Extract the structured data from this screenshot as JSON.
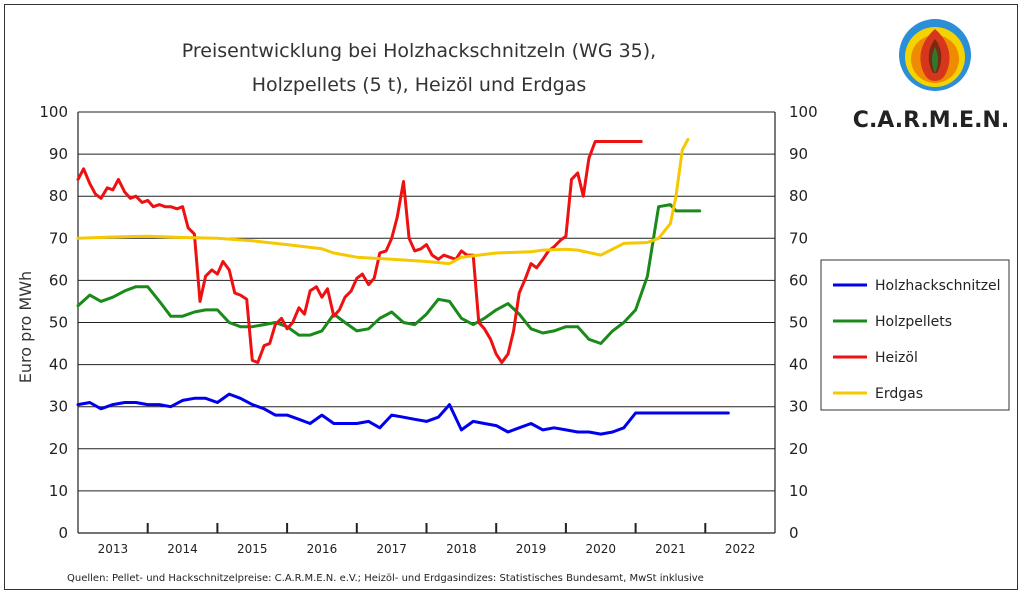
{
  "title_line1": "Preisentwicklung bei Holzhackschnitzeln (WG 35),",
  "title_line2": "Holzpellets (5 t), Heizöl und Erdgas",
  "logo": {
    "text": "C.A.R.M.E.N.",
    "icon": "carmen-flame-logo-icon"
  },
  "source_note": "Quellen: Pellet- und Hackschnitzelpreise: C.A.R.M.E.N. e.V.; Heizöl- und Erdgasindizes: Statistisches Bundesamt, MwSt inklusive",
  "chart_data": {
    "type": "line",
    "title": "Preisentwicklung bei Holzhackschnitzeln (WG 35), Holzpellets (5 t), Heizöl und Erdgas",
    "ylabel": "Euro pro MWh",
    "xlabel": "",
    "ylim": [
      0,
      100
    ],
    "yticks": [
      0,
      10,
      20,
      30,
      40,
      50,
      60,
      70,
      80,
      90,
      100
    ],
    "xlim": [
      2012.5,
      2022.5
    ],
    "xtick_labels": [
      "2013",
      "2014",
      "2015",
      "2016",
      "2017",
      "2018",
      "2019",
      "2020",
      "2021",
      "2022"
    ],
    "grid": true,
    "legend_position": "right",
    "series": [
      {
        "name": "Holzhackschnitzel",
        "color": "#0000ee",
        "x": [
          2012.5,
          2012.67,
          2012.83,
          2013.0,
          2013.17,
          2013.33,
          2013.5,
          2013.67,
          2013.83,
          2014.0,
          2014.17,
          2014.33,
          2014.5,
          2014.67,
          2014.83,
          2015.0,
          2015.17,
          2015.33,
          2015.5,
          2015.67,
          2015.83,
          2016.0,
          2016.17,
          2016.33,
          2016.5,
          2016.67,
          2016.83,
          2017.0,
          2017.17,
          2017.33,
          2017.5,
          2017.67,
          2017.83,
          2018.0,
          2018.17,
          2018.33,
          2018.5,
          2018.67,
          2018.83,
          2019.0,
          2019.17,
          2019.33,
          2019.5,
          2019.67,
          2019.83,
          2020.0,
          2020.17,
          2020.33,
          2020.5,
          2020.67,
          2020.83,
          2021.0,
          2021.17,
          2021.33,
          2021.5,
          2021.67,
          2021.83
        ],
        "values": [
          30.5,
          31.0,
          29.5,
          30.5,
          31.0,
          31.0,
          30.5,
          30.5,
          30.0,
          31.5,
          32.0,
          32.0,
          31.0,
          33.0,
          32.0,
          30.5,
          29.5,
          28.0,
          28.0,
          27.0,
          26.0,
          28.0,
          26.0,
          26.0,
          26.0,
          26.5,
          25.0,
          28.0,
          27.5,
          27.0,
          26.5,
          27.5,
          30.5,
          24.5,
          26.5,
          26.0,
          25.5,
          24.0,
          25.0,
          26.0,
          24.5,
          25.0,
          24.5,
          24.0,
          24.0,
          23.5,
          24.0,
          25.0,
          28.5,
          28.5,
          28.5,
          28.5,
          28.5,
          28.5,
          28.5,
          28.5,
          28.5
        ]
      },
      {
        "name": "Holzpellets",
        "color": "#1a8a1a",
        "x": [
          2012.5,
          2012.67,
          2012.83,
          2013.0,
          2013.17,
          2013.33,
          2013.5,
          2013.67,
          2013.83,
          2014.0,
          2014.17,
          2014.33,
          2014.5,
          2014.67,
          2014.83,
          2015.0,
          2015.17,
          2015.33,
          2015.5,
          2015.67,
          2015.83,
          2016.0,
          2016.17,
          2016.33,
          2016.5,
          2016.67,
          2016.83,
          2017.0,
          2017.17,
          2017.33,
          2017.5,
          2017.67,
          2017.83,
          2018.0,
          2018.17,
          2018.33,
          2018.5,
          2018.67,
          2018.83,
          2019.0,
          2019.17,
          2019.33,
          2019.5,
          2019.67,
          2019.83,
          2020.0,
          2020.17,
          2020.33,
          2020.5,
          2020.67,
          2020.83,
          2021.0,
          2021.08,
          2021.17,
          2021.25,
          2021.33,
          2021.42
        ],
        "values": [
          54.0,
          56.5,
          55.0,
          56.0,
          57.5,
          58.5,
          58.5,
          55.0,
          51.5,
          51.5,
          52.5,
          53.0,
          53.0,
          50.0,
          49.0,
          49.0,
          49.5,
          50.0,
          49.0,
          47.0,
          47.0,
          48.0,
          52.0,
          50.0,
          48.0,
          48.5,
          51.0,
          52.5,
          50.0,
          49.5,
          52.0,
          55.5,
          55.0,
          51.0,
          49.5,
          51.0,
          53.0,
          54.5,
          52.0,
          48.5,
          47.5,
          48.0,
          49.0,
          49.0,
          46.0,
          45.0,
          48.0,
          50.0,
          53.0,
          61.0,
          77.5,
          78.0,
          76.5,
          76.5,
          76.5,
          76.5,
          76.5
        ]
      },
      {
        "name": "Heizöl",
        "color": "#ee1111",
        "x": [
          2012.5,
          2012.58,
          2012.67,
          2012.75,
          2012.83,
          2012.92,
          2013.0,
          2013.08,
          2013.17,
          2013.25,
          2013.33,
          2013.42,
          2013.5,
          2013.58,
          2013.67,
          2013.75,
          2013.83,
          2013.92,
          2014.0,
          2014.08,
          2014.17,
          2014.25,
          2014.33,
          2014.42,
          2014.5,
          2014.58,
          2014.67,
          2014.75,
          2014.83,
          2014.92,
          2015.0,
          2015.08,
          2015.17,
          2015.25,
          2015.33,
          2015.42,
          2015.5,
          2015.58,
          2015.67,
          2015.75,
          2015.83,
          2015.92,
          2016.0,
          2016.08,
          2016.17,
          2016.25,
          2016.33,
          2016.42,
          2016.5,
          2016.58,
          2016.67,
          2016.75,
          2016.83,
          2016.92,
          2017.0,
          2017.08,
          2017.17,
          2017.25,
          2017.33,
          2017.42,
          2017.5,
          2017.58,
          2017.67,
          2017.75,
          2017.83,
          2017.92,
          2018.0,
          2018.08,
          2018.17,
          2018.25,
          2018.33,
          2018.42,
          2018.5,
          2018.58,
          2018.67,
          2018.75,
          2018.83,
          2018.92,
          2019.0,
          2019.08,
          2019.17,
          2019.25,
          2019.33,
          2019.42,
          2019.5,
          2019.58,
          2019.67,
          2019.75,
          2019.83,
          2019.92,
          2020.0,
          2020.08,
          2020.17,
          2020.25,
          2020.33,
          2020.42,
          2020.5,
          2020.58
        ],
        "values": [
          84.0,
          86.5,
          83.0,
          80.5,
          79.5,
          82.0,
          81.5,
          84.0,
          81.0,
          79.5,
          80.0,
          78.5,
          79.0,
          77.5,
          78.0,
          77.5,
          77.5,
          77.0,
          77.5,
          72.5,
          71.0,
          55.0,
          61.0,
          62.5,
          61.5,
          64.5,
          62.5,
          57.0,
          56.5,
          55.5,
          41.0,
          40.5,
          44.5,
          45.0,
          49.5,
          51.0,
          48.5,
          50.0,
          53.5,
          52.0,
          57.5,
          58.5,
          56.0,
          58.0,
          51.5,
          53.0,
          56.0,
          57.5,
          60.5,
          61.5,
          59.0,
          60.5,
          66.5,
          67.0,
          70.0,
          75.0,
          83.5,
          70.0,
          67.0,
          67.5,
          68.5,
          66.0,
          65.0,
          66.0,
          65.5,
          65.0,
          67.0,
          66.0,
          66.0,
          50.0,
          48.5,
          46.0,
          42.5,
          40.5,
          42.5,
          48.0,
          57.0,
          60.5,
          64.0,
          63.0,
          65.0,
          67.0,
          68.0,
          69.5,
          70.5,
          84.0,
          85.5,
          80.0,
          89.0,
          93.0,
          93.0,
          93.0,
          93.0,
          93.0,
          93.0,
          93.0,
          93.0,
          93.0
        ]
      },
      {
        "name": "Erdgas",
        "color": "#f5c800",
        "x": [
          2012.5,
          2013.0,
          2013.5,
          2014.0,
          2014.5,
          2015.0,
          2015.5,
          2016.0,
          2016.17,
          2016.5,
          2017.0,
          2017.5,
          2017.83,
          2018.0,
          2018.5,
          2019.0,
          2019.17,
          2019.5,
          2019.67,
          2020.0,
          2020.33,
          2020.67,
          2020.83,
          2021.0,
          2021.08,
          2021.17,
          2021.25
        ],
        "values": [
          70.0,
          70.3,
          70.5,
          70.2,
          70.0,
          69.4,
          68.5,
          67.5,
          66.5,
          65.5,
          65.0,
          64.5,
          64.0,
          65.5,
          66.5,
          66.8,
          67.2,
          67.4,
          67.2,
          66.0,
          68.8,
          69.0,
          70.0,
          73.5,
          80.0,
          91.0,
          93.5
        ]
      }
    ]
  }
}
